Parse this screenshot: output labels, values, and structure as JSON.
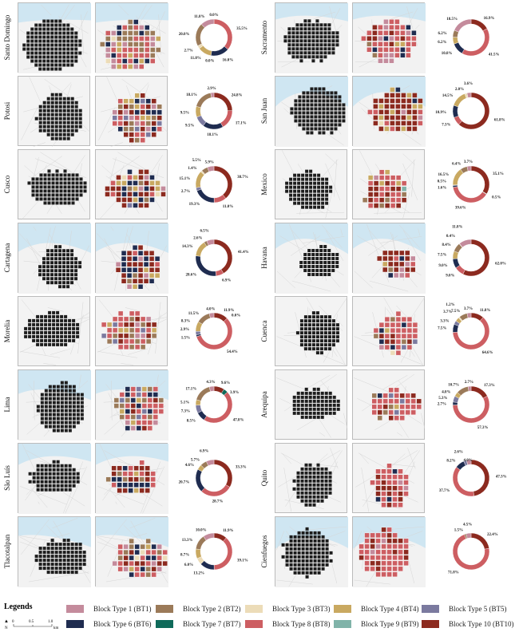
{
  "legend": {
    "title": "Legends",
    "scale": {
      "north": "N",
      "ticks": [
        "0",
        "0.5",
        "1.0"
      ],
      "unit": "km"
    },
    "items": [
      {
        "label": "Block Type 1 (BT1)",
        "color": "#c48b9c"
      },
      {
        "label": "Block Type 2 (BT2)",
        "color": "#9b7a59"
      },
      {
        "label": "Block Type 3 (BT3)",
        "color": "#ecdcb8"
      },
      {
        "label": "Block Type 4 (BT4)",
        "color": "#c9a961"
      },
      {
        "label": "Block Type 5 (BT5)",
        "color": "#7b7a9f"
      },
      {
        "label": "Block Type 6 (BT6)",
        "color": "#1f2c50"
      },
      {
        "label": "Block Type 7 (BT7)",
        "color": "#0f6a5a"
      },
      {
        "label": "Block Type 8 (BT8)",
        "color": "#cd5e62"
      },
      {
        "label": "Block Type 9 (BT9)",
        "color": "#80b3a9"
      },
      {
        "label": "Block Type 10 (BT10)",
        "color": "#8c2a1f"
      }
    ]
  },
  "cities": [
    {
      "name": "Santo Domingo",
      "segments": [
        [
          10,
          0.0,
          "0.0%"
        ],
        [
          8,
          35.5,
          "35.5%"
        ],
        [
          6,
          16.0,
          "16.0%"
        ],
        [
          5,
          0.0,
          "0.0%"
        ],
        [
          4,
          11.8,
          "11.8%"
        ],
        [
          3,
          2.7,
          "2.7%"
        ],
        [
          2,
          20.0,
          "20.0%"
        ],
        [
          1,
          11.8,
          "11.8%"
        ]
      ]
    },
    {
      "name": "Potosi",
      "segments": [
        [
          10,
          24.8,
          "24.8%"
        ],
        [
          8,
          17.1,
          "17.1%"
        ],
        [
          6,
          18.1,
          "18.1%"
        ],
        [
          5,
          9.5,
          "9.5%"
        ],
        [
          4,
          9.5,
          "9.5%"
        ],
        [
          2,
          18.1,
          "18.1%"
        ],
        [
          1,
          2.9,
          "2.9%"
        ]
      ]
    },
    {
      "name": "Cusco",
      "segments": [
        [
          10,
          38.7,
          "38.7%"
        ],
        [
          8,
          11.0,
          "11.0%"
        ],
        [
          6,
          19.3,
          "19.3%"
        ],
        [
          5,
          2.7,
          "2.7%"
        ],
        [
          4,
          15.1,
          "15.1%"
        ],
        [
          3,
          1.4,
          "1.4%"
        ],
        [
          2,
          5.5,
          "5.5%"
        ],
        [
          1,
          5.9,
          "5.9%"
        ]
      ]
    },
    {
      "name": "Cartagena",
      "segments": [
        [
          10,
          41.4,
          "41.4%"
        ],
        [
          8,
          6.9,
          "6.9%"
        ],
        [
          6,
          28.6,
          "28.6%"
        ],
        [
          4,
          14.3,
          "14.3%"
        ],
        [
          2,
          2.6,
          "2.6%"
        ],
        [
          1,
          6.5,
          "6.5%"
        ]
      ]
    },
    {
      "name": "Morelia",
      "segments": [
        [
          10,
          11.9,
          "11.9%"
        ],
        [
          9,
          0.0,
          "0.0%"
        ],
        [
          8,
          54.4,
          "54.4%"
        ],
        [
          6,
          1.5,
          "1.5%"
        ],
        [
          5,
          2.9,
          "2.9%"
        ],
        [
          4,
          8.3,
          "8.3%"
        ],
        [
          2,
          11.5,
          "11.5%"
        ],
        [
          1,
          4.0,
          "4.0%"
        ]
      ]
    },
    {
      "name": "Lima",
      "segments": [
        [
          10,
          9.6,
          "9.6%"
        ],
        [
          7,
          3.9,
          "3.9%"
        ],
        [
          8,
          47.8,
          "47.8%"
        ],
        [
          6,
          8.5,
          "8.5%"
        ],
        [
          5,
          7.3,
          "7.3%"
        ],
        [
          4,
          5.1,
          "5.1%"
        ],
        [
          2,
          17.1,
          "17.1%"
        ],
        [
          1,
          4.3,
          "4.3%"
        ]
      ]
    },
    {
      "name": "São Luís",
      "segments": [
        [
          10,
          33.3,
          "33.3%"
        ],
        [
          8,
          28.7,
          "28.7%"
        ],
        [
          6,
          20.7,
          "20.7%"
        ],
        [
          4,
          4.6,
          "4.6%"
        ],
        [
          2,
          5.7,
          "5.7%"
        ],
        [
          1,
          6.9,
          "6.9%"
        ]
      ]
    },
    {
      "name": "Tlacotalpan",
      "segments": [
        [
          10,
          11.9,
          "11.9%"
        ],
        [
          8,
          39.1,
          "39.1%"
        ],
        [
          6,
          13.2,
          "13.2%"
        ],
        [
          3,
          6.0,
          "6.0%"
        ],
        [
          4,
          8.7,
          "8.7%"
        ],
        [
          2,
          13.3,
          "13.3%"
        ],
        [
          1,
          10.0,
          "10.0%"
        ]
      ]
    },
    {
      "name": "Sacramento",
      "segments": [
        [
          10,
          16.9,
          "16.9%"
        ],
        [
          8,
          41.5,
          "41.5%"
        ],
        [
          6,
          10.8,
          "10.8%"
        ],
        [
          4,
          6.2,
          "6.2%"
        ],
        [
          2,
          6.2,
          "6.2%"
        ],
        [
          1,
          18.5,
          "18.5%"
        ]
      ]
    },
    {
      "name": "San Juan",
      "segments": [
        [
          10,
          61.8,
          "61.8%"
        ],
        [
          8,
          7.3,
          "7.3%"
        ],
        [
          6,
          10.9,
          "10.9%"
        ],
        [
          4,
          14.5,
          "14.5%"
        ],
        [
          3,
          2.0,
          "2.0%"
        ],
        [
          1,
          3.6,
          "3.6%"
        ]
      ]
    },
    {
      "name": "Mexico",
      "segments": [
        [
          10,
          35.1,
          "35.1%"
        ],
        [
          9,
          0.5,
          "0.5%"
        ],
        [
          8,
          39.6,
          "39.6%"
        ],
        [
          6,
          1.6,
          "1.6%"
        ],
        [
          5,
          0.5,
          "0.5%"
        ],
        [
          4,
          16.5,
          "16.5%"
        ],
        [
          2,
          6.4,
          "6.4%"
        ],
        [
          1,
          3.7,
          "3.7%"
        ]
      ]
    },
    {
      "name": "Havana",
      "segments": [
        [
          10,
          62.0,
          "62.0%"
        ],
        [
          8,
          9.0,
          "9.0%"
        ],
        [
          6,
          9.0,
          "9.0%"
        ],
        [
          4,
          7.5,
          "7.5%"
        ],
        [
          2,
          8.4,
          "8.4%"
        ],
        [
          3,
          0.4,
          "0.4%"
        ],
        [
          1,
          11.8,
          "11.8%"
        ]
      ]
    },
    {
      "name": "Cuenca",
      "segments": [
        [
          10,
          11.8,
          "11.8%"
        ],
        [
          8,
          64.6,
          "64.6%"
        ],
        [
          6,
          7.5,
          "7.5%"
        ],
        [
          5,
          3.3,
          "3.3%"
        ],
        [
          4,
          3.7,
          "3.7%"
        ],
        [
          3,
          1.2,
          "1.2%"
        ],
        [
          2,
          7.5,
          "7.5%"
        ],
        [
          1,
          3.7,
          "3.7%"
        ]
      ]
    },
    {
      "name": "Arequipa",
      "segments": [
        [
          10,
          17.3,
          "17.3%"
        ],
        [
          8,
          57.3,
          "57.3%"
        ],
        [
          6,
          2.7,
          "2.7%"
        ],
        [
          5,
          5.3,
          "5.3%"
        ],
        [
          4,
          4.0,
          "4.0%"
        ],
        [
          2,
          10.7,
          "10.7%"
        ],
        [
          1,
          2.7,
          "2.7%"
        ]
      ]
    },
    {
      "name": "Quito",
      "segments": [
        [
          10,
          47.3,
          "47.3%"
        ],
        [
          8,
          37.7,
          "37.7%"
        ],
        [
          6,
          8.2,
          "8.2%"
        ],
        [
          5,
          2.6,
          "2.6%"
        ],
        [
          1,
          4.0,
          "4.0%"
        ]
      ]
    },
    {
      "name": "Cienfuegos",
      "segments": [
        [
          10,
          22.4,
          "22.4%"
        ],
        [
          8,
          71.8,
          "71.8%"
        ],
        [
          2,
          1.5,
          "1.5%"
        ],
        [
          1,
          4.5,
          "4.5%"
        ]
      ]
    }
  ]
}
